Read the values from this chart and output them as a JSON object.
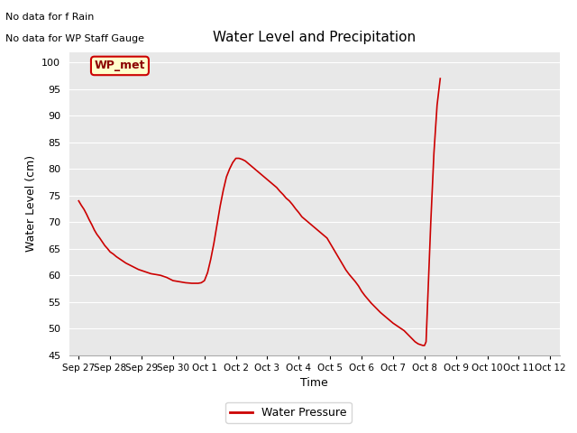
{
  "title": "Water Level and Precipitation",
  "xlabel": "Time",
  "ylabel": "Water Level (cm)",
  "ylim": [
    45,
    102
  ],
  "yticks": [
    45,
    50,
    55,
    60,
    65,
    70,
    75,
    80,
    85,
    90,
    95,
    100
  ],
  "plot_bg_color": "#e8e8e8",
  "line_color": "#cc0000",
  "line_width": 1.2,
  "no_data_text1": "No data for f Rain",
  "no_data_text2": "No data for WP Staff Gauge",
  "legend_label": "Water Pressure",
  "wp_met_label": "WP_met",
  "x_dates": [
    "Sep 27",
    "Sep 28",
    "Sep 29",
    "Sep 30",
    "Oct 1",
    "Oct 2",
    "Oct 3",
    "Oct 4",
    "Oct 5",
    "Oct 6",
    "Oct 7",
    "Oct 8",
    "Oct 9",
    "Oct 10",
    "Oct 11",
    "Oct 12"
  ],
  "water_level_x": [
    0.0,
    0.08,
    0.17,
    0.25,
    0.33,
    0.42,
    0.5,
    0.58,
    0.67,
    0.75,
    0.83,
    0.92,
    1.0,
    1.1,
    1.2,
    1.3,
    1.4,
    1.5,
    1.6,
    1.7,
    1.8,
    1.9,
    2.0,
    2.1,
    2.2,
    2.3,
    2.4,
    2.5,
    2.6,
    2.7,
    2.8,
    2.9,
    3.0,
    3.1,
    3.2,
    3.3,
    3.4,
    3.5,
    3.6,
    3.7,
    3.8,
    3.9,
    4.0,
    4.1,
    4.2,
    4.3,
    4.4,
    4.5,
    4.6,
    4.7,
    4.8,
    4.9,
    5.0,
    5.1,
    5.2,
    5.3,
    5.4,
    5.5,
    5.6,
    5.7,
    5.8,
    5.9,
    6.0,
    6.1,
    6.2,
    6.3,
    6.4,
    6.5,
    6.6,
    6.7,
    6.8,
    6.9,
    7.0,
    7.1,
    7.2,
    7.3,
    7.4,
    7.5,
    7.6,
    7.7,
    7.8,
    7.9,
    8.0,
    8.1,
    8.2,
    8.3,
    8.4,
    8.5,
    8.6,
    8.7,
    8.8,
    8.9,
    9.0,
    9.1,
    9.2,
    9.3,
    9.4,
    9.5,
    9.6,
    9.7,
    9.8,
    9.9,
    10.0,
    10.05,
    10.1,
    10.15,
    10.2,
    10.25,
    10.3,
    10.35,
    10.4,
    10.45,
    10.5,
    10.55,
    10.6,
    10.65,
    10.7,
    10.75,
    10.8,
    10.85,
    10.9,
    10.95,
    11.0,
    11.05,
    11.1,
    11.2,
    11.3,
    11.4,
    11.5
  ],
  "water_level_y": [
    74,
    73.2,
    72.4,
    71.5,
    70.5,
    69.5,
    68.5,
    67.7,
    67.0,
    66.3,
    65.6,
    65.0,
    64.4,
    64.0,
    63.5,
    63.1,
    62.7,
    62.3,
    62.0,
    61.7,
    61.4,
    61.1,
    60.9,
    60.7,
    60.5,
    60.3,
    60.2,
    60.1,
    60.0,
    59.8,
    59.6,
    59.3,
    59.0,
    58.9,
    58.8,
    58.7,
    58.6,
    58.55,
    58.5,
    58.5,
    58.5,
    58.6,
    59.0,
    60.5,
    63.0,
    66.0,
    69.5,
    73.0,
    76.0,
    78.5,
    80.0,
    81.2,
    82.0,
    82.0,
    81.8,
    81.5,
    81.0,
    80.5,
    80.0,
    79.5,
    79.0,
    78.5,
    78.0,
    77.5,
    77.0,
    76.5,
    75.8,
    75.2,
    74.5,
    74.0,
    73.3,
    72.5,
    71.8,
    71.0,
    70.5,
    70.0,
    69.5,
    69.0,
    68.5,
    68.0,
    67.5,
    67.0,
    66.0,
    65.0,
    64.0,
    63.0,
    62.0,
    61.0,
    60.2,
    59.5,
    58.8,
    58.0,
    57.0,
    56.2,
    55.5,
    54.8,
    54.2,
    53.6,
    53.0,
    52.5,
    52.0,
    51.5,
    51.0,
    50.8,
    50.6,
    50.4,
    50.2,
    50.0,
    49.8,
    49.6,
    49.3,
    49.0,
    48.7,
    48.4,
    48.1,
    47.8,
    47.5,
    47.3,
    47.1,
    47.0,
    46.9,
    46.8,
    46.8,
    47.5,
    55.0,
    70.0,
    83.0,
    92.0,
    97.0
  ]
}
